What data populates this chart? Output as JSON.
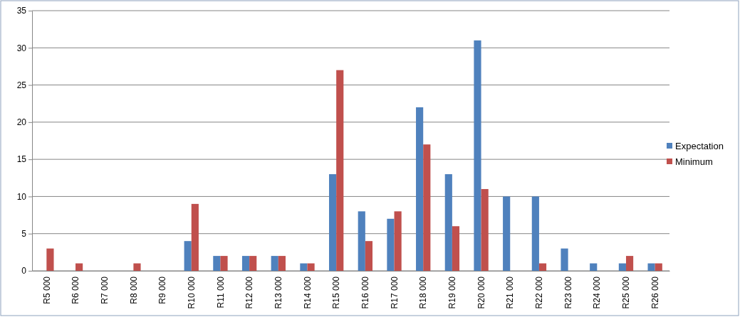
{
  "chart_data": {
    "type": "bar",
    "categories": [
      "R5 000",
      "R6 000",
      "R7 000",
      "R8 000",
      "R9 000",
      "R10 000",
      "R11 000",
      "R12 000",
      "R13 000",
      "R14 000",
      "R15 000",
      "R16 000",
      "R17 000",
      "R18 000",
      "R19 000",
      "R20 000",
      "R21 000",
      "R22 000",
      "R23 000",
      "R24 000",
      "R25 000",
      "R26 000"
    ],
    "series": [
      {
        "name": "Expectation",
        "color": "#4f81bd",
        "values": [
          0,
          0,
          0,
          0,
          0,
          4,
          2,
          2,
          2,
          1,
          13,
          8,
          7,
          22,
          13,
          31,
          10,
          10,
          3,
          1,
          1,
          1
        ]
      },
      {
        "name": "Minimum",
        "color": "#c0504d",
        "values": [
          3,
          1,
          0,
          1,
          0,
          9,
          2,
          2,
          2,
          1,
          27,
          4,
          8,
          17,
          6,
          11,
          0,
          1,
          0,
          0,
          2,
          1
        ]
      }
    ],
    "ylim": [
      0,
      35
    ],
    "yticks": [
      0,
      5,
      10,
      15,
      20,
      25,
      30,
      35
    ],
    "grid": "y",
    "legend": "right"
  }
}
